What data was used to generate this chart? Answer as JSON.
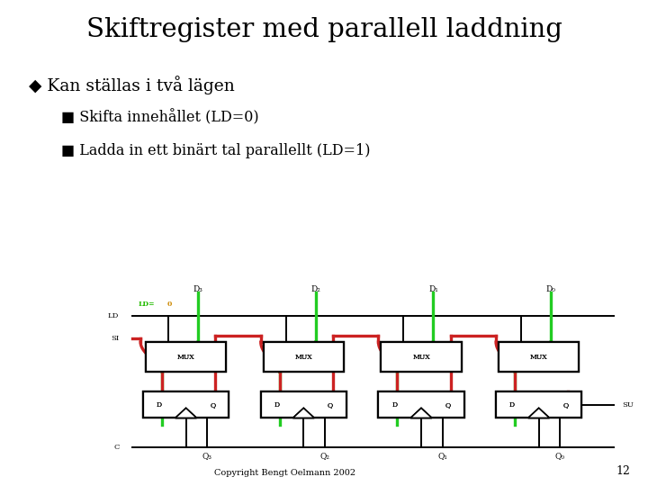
{
  "title": "Skiftregister med parallell laddning",
  "bullet1": "Kan ställas i två lägen",
  "sub1": "Skifta innehållet (LD=0)",
  "sub2": "Ladda in ett binärt tal parallellt (LD=1)",
  "copyright": "Copyright Bengt Oelmann 2002",
  "page_num": "12",
  "bg_color": "#ffffff",
  "title_color": "#000000",
  "text_color": "#000000",
  "green_color": "#22cc22",
  "red_color": "#cc2222",
  "black_color": "#000000",
  "ld0_green": "#22bb00",
  "ld0_orange": "#cc8800"
}
